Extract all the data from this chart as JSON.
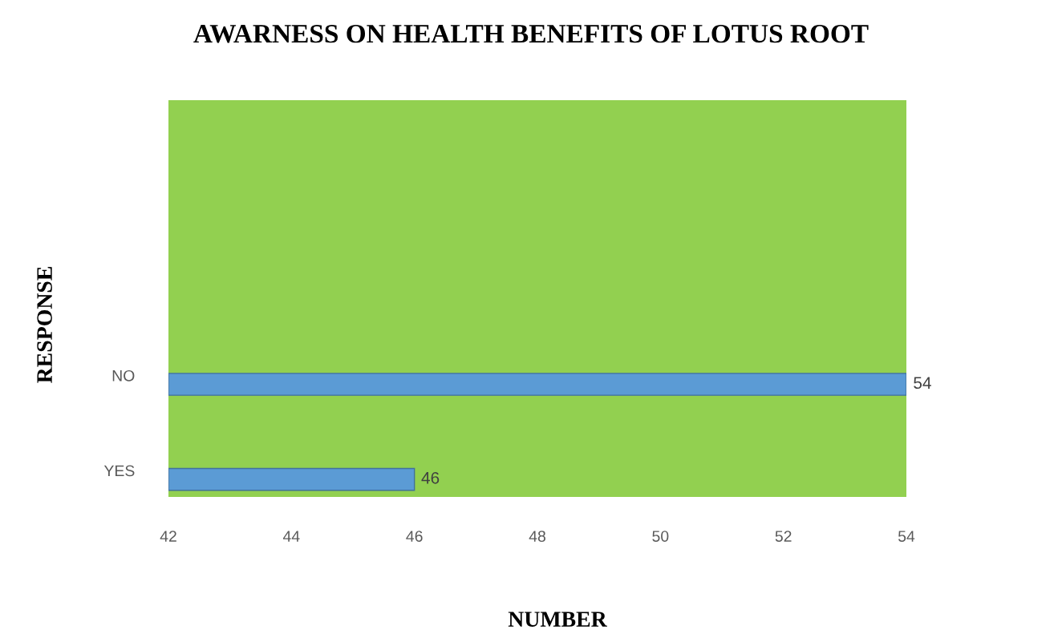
{
  "chart_data": {
    "type": "bar",
    "orientation": "horizontal",
    "title": "AWARNESS ON HEALTH BENEFITS OF LOTUS ROOT",
    "xlabel": "NUMBER",
    "ylabel": "RESPONSE",
    "categories": [
      "NO",
      "YES"
    ],
    "values": [
      54,
      46
    ],
    "color": "#5b9bd5",
    "xlim": [
      42,
      54
    ],
    "xticks": [
      42,
      44,
      46,
      48,
      50,
      52,
      54
    ],
    "bands": [
      {
        "axis": "x",
        "from": 42,
        "to": 54,
        "color": "#92d050"
      }
    ],
    "data_labels": true,
    "grid": false,
    "legend": false
  }
}
